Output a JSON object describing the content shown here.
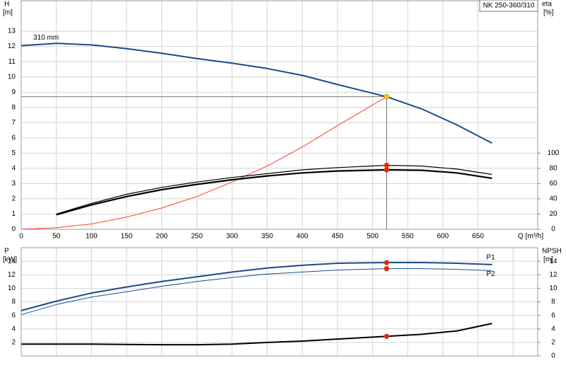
{
  "chart_data": [
    {
      "type": "line",
      "title": "NK 250-360/310",
      "ylabel": "H",
      "yunit": "[m]",
      "y2label": "eta",
      "y2unit": "[%]",
      "xlabel": "Q [m³/h]",
      "xlim": [
        0,
        735
      ],
      "xticks": [
        0,
        50,
        100,
        150,
        200,
        250,
        300,
        350,
        400,
        450,
        500,
        550,
        600,
        650
      ],
      "xtick_labels": true,
      "ylim": [
        0,
        15
      ],
      "yticks": [
        0,
        1,
        2,
        3,
        4,
        5,
        6,
        7,
        8,
        9,
        10,
        11,
        12,
        13
      ],
      "y2lim": [
        0,
        300
      ],
      "y2ticks": [
        0,
        20,
        40,
        60,
        80,
        100
      ],
      "grid": true,
      "series": [
        {
          "name": "310 mm",
          "name_position": "start",
          "color": "#1b4c8c",
          "width": 2,
          "axis": "y",
          "x": [
            0,
            50,
            100,
            150,
            200,
            250,
            300,
            350,
            400,
            450,
            520,
            570,
            620,
            670
          ],
          "values": [
            12.05,
            12.2,
            12.1,
            11.85,
            11.55,
            11.2,
            10.9,
            10.55,
            10.1,
            9.5,
            8.7,
            7.9,
            6.85,
            5.65
          ],
          "marker": {
            "index": 10,
            "color": "#f5c518"
          },
          "crosshair": true
        },
        {
          "color": "#ff3b30",
          "width": 1,
          "axis": "y",
          "x": [
            0,
            50,
            100,
            150,
            200,
            250,
            300,
            350,
            400,
            450,
            520
          ],
          "values": [
            0,
            0.1,
            0.35,
            0.8,
            1.4,
            2.15,
            3.1,
            4.15,
            5.4,
            6.8,
            8.7
          ]
        },
        {
          "color": "#000000",
          "width": 1.2,
          "axis": "y2",
          "x": [
            50,
            100,
            150,
            200,
            250,
            300,
            350,
            400,
            450,
            520,
            570,
            620,
            670
          ],
          "values": [
            20,
            34,
            46,
            55,
            62,
            68,
            73,
            78,
            81,
            84,
            83,
            79,
            72
          ],
          "marker": {
            "index": 9,
            "color": "#e8201a"
          }
        },
        {
          "color": "#000000",
          "width": 2.2,
          "axis": "y2",
          "x": [
            50,
            100,
            150,
            200,
            250,
            300,
            350,
            400,
            450,
            520,
            570,
            620,
            670
          ],
          "values": [
            19,
            32,
            43,
            52,
            59,
            65,
            70,
            74,
            76.5,
            78,
            77.5,
            74,
            67
          ],
          "marker": {
            "index": 9,
            "color": "#e8201a"
          }
        }
      ]
    },
    {
      "type": "line",
      "ylabel": "P",
      "yunit": "[kW]",
      "y2label": "NPSH",
      "y2unit": "[m]",
      "xlim": [
        0,
        735
      ],
      "xticks": [
        0,
        50,
        100,
        150,
        200,
        250,
        300,
        350,
        400,
        450,
        500,
        550,
        600,
        650,
        700
      ],
      "xtick_labels": false,
      "ylim": [
        0,
        16
      ],
      "yticks": [
        2,
        4,
        6,
        8,
        10,
        12,
        14
      ],
      "y2lim": [
        0,
        16
      ],
      "y2ticks": [
        0,
        2,
        4,
        6,
        8,
        10,
        12,
        14
      ],
      "grid": true,
      "series": [
        {
          "name": "P1",
          "name_position": "end",
          "color": "#1b4c8c",
          "width": 2,
          "axis": "y",
          "x": [
            0,
            50,
            100,
            150,
            200,
            250,
            300,
            350,
            400,
            450,
            520,
            570,
            620,
            670
          ],
          "values": [
            6.7,
            8.1,
            9.3,
            10.2,
            11.0,
            11.7,
            12.4,
            13.0,
            13.4,
            13.7,
            13.8,
            13.8,
            13.7,
            13.5
          ],
          "marker": {
            "index": 10,
            "color": "#e8201a"
          }
        },
        {
          "name": "P2",
          "name_position": "end",
          "color": "#1b4c8c",
          "width": 1,
          "axis": "y",
          "x": [
            0,
            50,
            100,
            150,
            200,
            250,
            300,
            350,
            400,
            450,
            520,
            570,
            620,
            670
          ],
          "values": [
            6.1,
            7.6,
            8.7,
            9.5,
            10.3,
            11.0,
            11.6,
            12.1,
            12.4,
            12.7,
            12.9,
            12.9,
            12.8,
            12.6
          ],
          "marker": {
            "index": 10,
            "color": "#e8201a"
          }
        },
        {
          "color": "#000000",
          "width": 2,
          "axis": "y2",
          "x": [
            0,
            50,
            100,
            150,
            200,
            250,
            300,
            350,
            400,
            450,
            520,
            570,
            620,
            670
          ],
          "values": [
            1.76,
            1.76,
            1.76,
            1.7,
            1.66,
            1.66,
            1.76,
            2.0,
            2.2,
            2.5,
            2.9,
            3.2,
            3.7,
            4.8
          ],
          "marker": {
            "index": 10,
            "color": "#e8201a"
          }
        }
      ]
    }
  ]
}
